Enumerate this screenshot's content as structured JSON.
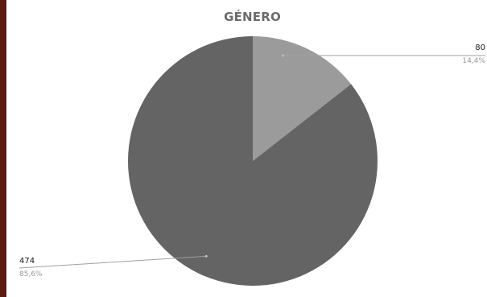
{
  "chart_data": {
    "type": "pie",
    "title": "GÉNERO",
    "slices": [
      {
        "value": 80,
        "percent_label": "14,4%",
        "color": "#9b9b9b"
      },
      {
        "value": 474,
        "percent_label": "85,6%",
        "color": "#646464"
      }
    ],
    "legend": "none"
  },
  "colors": {
    "accent_bar": "#5c1a12",
    "leader_line": "#a0a0a0"
  }
}
